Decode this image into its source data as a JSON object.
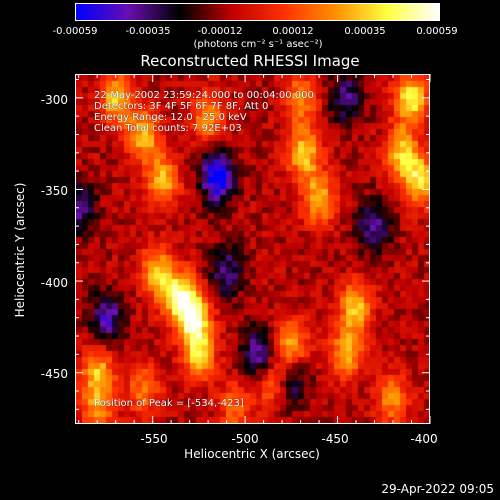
{
  "colorbar": {
    "ticks": [
      "-0.00059",
      "-0.00035",
      "-0.00012",
      "0.00012",
      "0.00035",
      "0.00059"
    ],
    "unit_label": "(photons cm⁻² s⁻¹ asec⁻²)"
  },
  "annotations": {
    "time": "22-May-2002 23:59:24.000 to 00:04:00.000",
    "detectors": "Detectors: 3F 4F 5F 6F 7F 8F, Att 0",
    "energy": "Energy Range: 12.0 - 25.0 keV",
    "algorithm": "Clean     Total counts: 7.92E+03",
    "peak": "Position of Peak = [-534,-423]"
  },
  "footer": {
    "timestamp": "29-Apr-2022 09:05"
  },
  "chart_data": {
    "type": "heatmap",
    "title": "Reconstructed RHESSI Image",
    "xlabel": "Heliocentric X (arcsec)",
    "ylabel": "Heliocentric Y (arcsec)",
    "xlim": [
      -592,
      -400
    ],
    "ylim": [
      -478,
      -287
    ],
    "x_ticks": [
      -550,
      -500,
      -450,
      -400
    ],
    "y_ticks": [
      -300,
      -350,
      -400,
      -450
    ],
    "colorbar_range": [
      -0.00059,
      0.00059
    ],
    "colormap": [
      "#0000ff",
      "#6a0fb0",
      "#000000",
      "#c00000",
      "#ff3000",
      "#ff9000",
      "#ffff40",
      "#ffffff"
    ],
    "hotspots": [
      {
        "x": -528,
        "y": -420,
        "level": 1.0
      },
      {
        "x": -536,
        "y": -408,
        "level": 0.85
      },
      {
        "x": -548,
        "y": -395,
        "level": 0.7
      },
      {
        "x": -525,
        "y": -440,
        "level": 0.75
      },
      {
        "x": -580,
        "y": -450,
        "level": 0.65
      },
      {
        "x": -570,
        "y": -300,
        "level": 0.75
      },
      {
        "x": -555,
        "y": -320,
        "level": 0.7
      },
      {
        "x": -545,
        "y": -345,
        "level": 0.7
      },
      {
        "x": -520,
        "y": -310,
        "level": 0.6
      },
      {
        "x": -468,
        "y": -330,
        "level": 0.75
      },
      {
        "x": -460,
        "y": -355,
        "level": 0.7
      },
      {
        "x": -470,
        "y": -300,
        "level": 0.55
      },
      {
        "x": -410,
        "y": -300,
        "level": 0.9
      },
      {
        "x": -405,
        "y": -345,
        "level": 0.8
      },
      {
        "x": -415,
        "y": -330,
        "level": 0.7
      },
      {
        "x": -440,
        "y": -415,
        "level": 0.75
      },
      {
        "x": -445,
        "y": -440,
        "level": 0.65
      },
      {
        "x": -475,
        "y": -435,
        "level": 0.65
      },
      {
        "x": -485,
        "y": -455,
        "level": 0.55
      },
      {
        "x": -420,
        "y": -465,
        "level": 0.55
      },
      {
        "x": -580,
        "y": -470,
        "level": 0.55
      },
      {
        "x": -555,
        "y": -460,
        "level": 0.5
      },
      {
        "x": -505,
        "y": -470,
        "level": 0.45
      }
    ],
    "coldspots": [
      {
        "x": -515,
        "y": -343,
        "level": -0.9
      },
      {
        "x": -575,
        "y": -420,
        "level": -0.6
      },
      {
        "x": -492,
        "y": -440,
        "level": -0.65
      },
      {
        "x": -475,
        "y": -455,
        "level": -0.5
      },
      {
        "x": -430,
        "y": -370,
        "level": -0.55
      },
      {
        "x": -510,
        "y": -395,
        "level": -0.5
      },
      {
        "x": -445,
        "y": -300,
        "level": -0.5
      },
      {
        "x": -590,
        "y": -360,
        "level": -0.5
      }
    ]
  }
}
